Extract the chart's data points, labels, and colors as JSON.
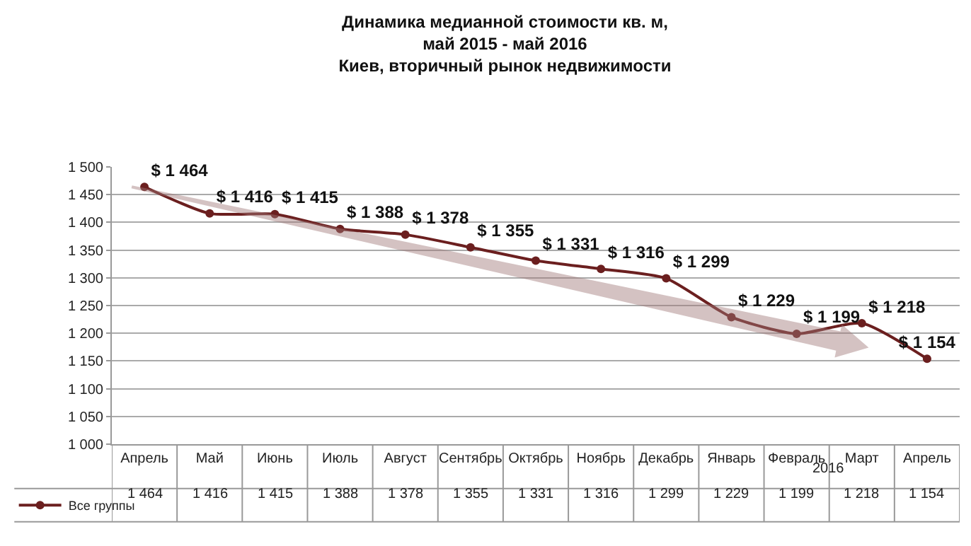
{
  "chart_data": {
    "type": "line",
    "title": "Динамика медианной стоимости кв. м,\nмай 2015 - май 2016\nКиев, вторичный рынок недвижимости",
    "categories": [
      "Апрель",
      "Май",
      "Июнь",
      "Июль",
      "Август",
      "Сентябрь",
      "Октябрь",
      "Ноябрь",
      "Декабрь",
      "Январь",
      "Февраль",
      "Март",
      "Апрель"
    ],
    "series": [
      {
        "name": "Все группы",
        "color": "#6b1f1f",
        "values": [
          1464,
          1416,
          1415,
          1388,
          1378,
          1355,
          1331,
          1316,
          1299,
          1229,
          1199,
          1218,
          1154
        ],
        "value_labels": [
          "$ 1 464",
          "$ 1 416",
          "$ 1 415",
          "$ 1 388",
          "$ 1 378",
          "$ 1 355",
          "$ 1 331",
          "$ 1 316",
          "$ 1 299",
          "$ 1 229",
          "$ 1 199",
          "$ 1 218",
          "$ 1 154"
        ]
      }
    ],
    "annotations": [
      "2016",
      "1 464",
      "1 416",
      "1 415",
      "1 388",
      "1 378",
      "1 355",
      "1 331",
      "1 316",
      "1 299",
      "1 229",
      "1 199",
      "1 218",
      "1 154"
    ],
    "ylim": [
      1000,
      1500
    ],
    "yticks": [
      {
        "value": 1000,
        "label": "1 000"
      },
      {
        "value": 1050,
        "label": "1 050"
      },
      {
        "value": 1100,
        "label": "1 100"
      },
      {
        "value": 1150,
        "label": "1 150"
      },
      {
        "value": 1200,
        "label": "1 200"
      },
      {
        "value": 1250,
        "label": "1 250"
      },
      {
        "value": 1300,
        "label": "1 300"
      },
      {
        "value": 1350,
        "label": "1 350"
      },
      {
        "value": 1400,
        "label": "1 400"
      },
      {
        "value": 1450,
        "label": "1 450"
      },
      {
        "value": 1500,
        "label": "1 500"
      }
    ],
    "grid": "y",
    "legend": "bottom left",
    "marker": "circle",
    "line_style": "solid",
    "data_labels": true
  }
}
